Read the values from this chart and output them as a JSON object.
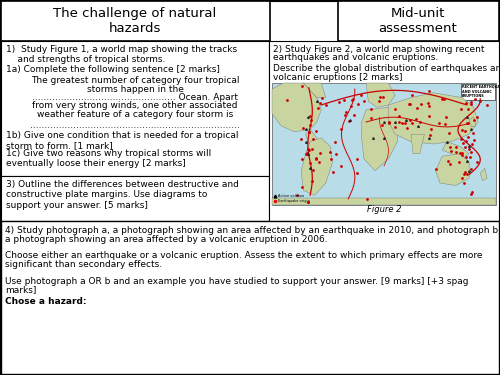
{
  "title_left": "The challenge of natural\nhazards",
  "title_right": "Mid-unit\nassessment",
  "bg_color": "#ffffff",
  "q1_text": "1)  Study Figure 1, a world map showing the tracks\n    and strengths of tropical storms.",
  "q1a_label": "1a) Complete the following sentence [2 marks]",
  "q1a_line1": "The greatest number of category four tropical",
  "q1a_line2": "storms happen in the",
  "q1a_line3": ".................................................. Ocean. Apart",
  "q1a_line4": "from very strong winds, one other associated",
  "q1a_line5": "weather feature of a category four storm is",
  "q1a_dots": ".........................................................................",
  "q1b_text": "1b) Give one condition that is needed for a tropical\nstorm to form. [1 mark]",
  "q1c_text": "1c) Give two reasons why tropical storms will\neventually loose their energy [2 marks]",
  "q3_text": "3) Outline the differences between destructive and\nconstructive plate margins. Use diagrams to\nsupport your answer. [5 marks]",
  "q2_line1": "2) Study Figure 2, a world map showing recent",
  "q2_line2": "earthquakes and volcanic eruptions.",
  "q2_line3": "",
  "q2_line4": "Describe the global distribution of earthquakes and",
  "q2_line5": "volcanic eruptions [2 marks]",
  "figure2_caption": "Figure 2",
  "q4_line1": "4) Study photograph a, a photograph showing an area affected by an earthquake in 2010, and photograph b,",
  "q4_line2": "a photograph showing an area affected by a volcanic eruption in 2006.",
  "q4_line3": "",
  "q4_line4": "Choose either an earthquake or a volcanic eruption. Assess the extent to which primary effects are more",
  "q4_line5": "significant than secondary effects.",
  "q4_line6": "",
  "q4_line7": "Use photograph a OR b and an example you have studied to support your answer. [9 marks] [+3 spag",
  "q4_line8": "marks]",
  "q4_bold": "Chose a hazard:",
  "font_size_title": 9.5,
  "font_size_body": 6.5,
  "land_color": "#c8d5a0",
  "sea_color": "#b8dce8",
  "plate_color": "#cc0000",
  "dot_color": "#cc0000",
  "tri_color": "#222222"
}
